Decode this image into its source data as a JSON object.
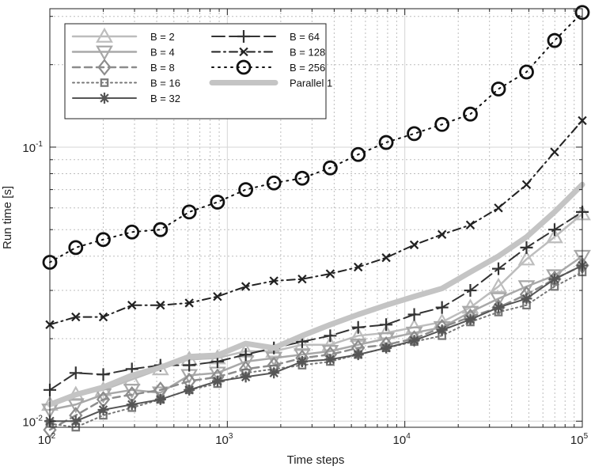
{
  "chart_data": {
    "type": "line",
    "xscale": "log",
    "yscale": "log",
    "xlim": [
      100,
      100000
    ],
    "ylim": [
      0.0095,
      0.32
    ],
    "xlabel": "Time steps",
    "ylabel": "Run time [s]",
    "grid": true,
    "legend_position": "top-left",
    "x_ticks": [
      {
        "base": "10",
        "exp": "2",
        "value": 100
      },
      {
        "base": "10",
        "exp": "3",
        "value": 1000
      },
      {
        "base": "10",
        "exp": "4",
        "value": 10000
      },
      {
        "base": "10",
        "exp": "5",
        "value": 100000
      }
    ],
    "y_ticks": [
      {
        "base": "10",
        "exp": "-2",
        "value": 0.01
      },
      {
        "base": "10",
        "exp": "-1",
        "value": 0.1
      }
    ],
    "x": [
      100,
      140,
      200,
      290,
      420,
      610,
      880,
      1270,
      1830,
      2640,
      3800,
      5460,
      7850,
      11300,
      16200,
      23400,
      33700,
      48500,
      69800,
      100000
    ],
    "series": [
      {
        "name": "B = 2",
        "color": "#bdbdbd",
        "style": "solid",
        "marker": "triangle-up",
        "width": 2.5,
        "values": [
          0.0115,
          0.0125,
          0.013,
          0.0142,
          0.0155,
          0.0168,
          0.017,
          0.018,
          0.018,
          0.019,
          0.019,
          0.0205,
          0.021,
          0.022,
          0.023,
          0.026,
          0.031,
          0.039,
          0.047,
          0.057
        ]
      },
      {
        "name": "B = 4",
        "color": "#a8a8a8",
        "style": "solid",
        "marker": "triangle-down",
        "width": 2.5,
        "values": [
          0.011,
          0.0115,
          0.0125,
          0.013,
          0.0127,
          0.0147,
          0.015,
          0.0165,
          0.017,
          0.0175,
          0.018,
          0.019,
          0.02,
          0.021,
          0.022,
          0.025,
          0.028,
          0.031,
          0.034,
          0.04
        ]
      },
      {
        "name": "B = 8",
        "color": "#8c8c8c",
        "style": "dashed",
        "marker": "diamond",
        "width": 2.5,
        "values": [
          0.0093,
          0.0105,
          0.012,
          0.0125,
          0.013,
          0.014,
          0.0145,
          0.0155,
          0.016,
          0.017,
          0.0175,
          0.0185,
          0.019,
          0.02,
          0.022,
          0.024,
          0.026,
          0.029,
          0.033,
          0.037
        ]
      },
      {
        "name": "B = 16",
        "color": "#777777",
        "style": "dotted",
        "marker": "square",
        "width": 2.0,
        "values": [
          0.0098,
          0.0095,
          0.0105,
          0.0112,
          0.012,
          0.013,
          0.0137,
          0.015,
          0.0155,
          0.016,
          0.0165,
          0.0175,
          0.0185,
          0.0195,
          0.0205,
          0.023,
          0.025,
          0.0265,
          0.031,
          0.035
        ]
      },
      {
        "name": "B = 32",
        "color": "#555555",
        "style": "solid",
        "marker": "asterisk",
        "width": 2.0,
        "values": [
          0.01,
          0.01,
          0.011,
          0.0115,
          0.012,
          0.013,
          0.014,
          0.0145,
          0.015,
          0.0165,
          0.0168,
          0.0175,
          0.0185,
          0.0197,
          0.0215,
          0.0235,
          0.026,
          0.028,
          0.033,
          0.037
        ]
      },
      {
        "name": "B = 64",
        "color": "#333333",
        "style": "longdash",
        "marker": "plus",
        "width": 2.0,
        "values": [
          0.013,
          0.015,
          0.0148,
          0.0155,
          0.016,
          0.016,
          0.0165,
          0.0175,
          0.0185,
          0.0195,
          0.0205,
          0.022,
          0.0225,
          0.0245,
          0.026,
          0.03,
          0.036,
          0.043,
          0.05,
          0.058
        ]
      },
      {
        "name": "B = 128",
        "color": "#222222",
        "style": "dashdot",
        "marker": "x",
        "width": 2.0,
        "values": [
          0.0225,
          0.024,
          0.024,
          0.0265,
          0.0265,
          0.027,
          0.0285,
          0.031,
          0.0325,
          0.033,
          0.0345,
          0.0365,
          0.0395,
          0.044,
          0.048,
          0.052,
          0.06,
          0.073,
          0.096,
          0.125
        ]
      },
      {
        "name": "B = 256",
        "color": "#111111",
        "style": "densedot",
        "marker": "circle",
        "width": 2.0,
        "values": [
          0.038,
          0.043,
          0.046,
          0.049,
          0.05,
          0.058,
          0.063,
          0.07,
          0.074,
          0.077,
          0.084,
          0.094,
          0.104,
          0.112,
          0.121,
          0.132,
          0.163,
          0.188,
          0.245,
          0.31
        ]
      },
      {
        "name": "Parallel 1",
        "color": "#c4c4c4",
        "style": "solid",
        "marker": "none",
        "width": 7,
        "values": [
          0.0115,
          0.0125,
          0.0133,
          0.0147,
          0.0157,
          0.0172,
          0.0174,
          0.0192,
          0.0185,
          0.0205,
          0.0225,
          0.0245,
          0.0265,
          0.0285,
          0.0305,
          0.035,
          0.04,
          0.047,
          0.058,
          0.073
        ]
      }
    ]
  }
}
